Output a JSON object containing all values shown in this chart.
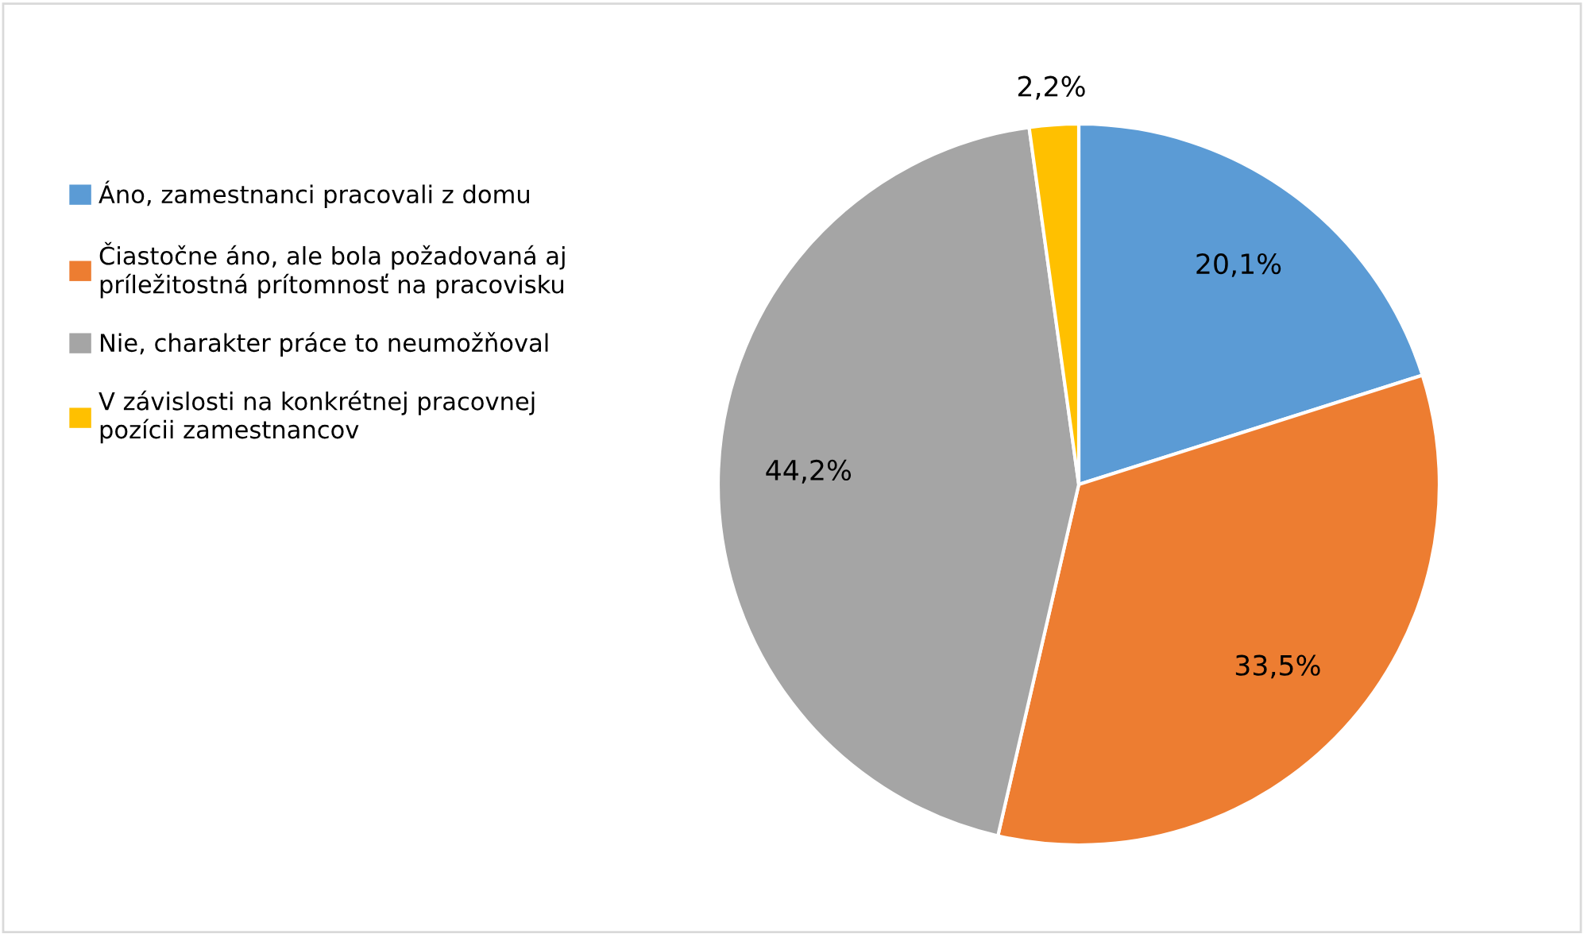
{
  "chart_data": {
    "type": "pie",
    "categories": [
      "Áno, zamestnanci pracovali z domu",
      "Čiastočne áno, ale bola požadovaná aj príležitostná prítomnosť na pracovisku",
      "Nie, charakter práce to neumožňoval",
      "V závislosti na konkrétnej pracovnej pozícii zamestnancov"
    ],
    "values": [
      20.1,
      33.5,
      44.2,
      2.2
    ],
    "value_labels": [
      "20,1%",
      "33,5%",
      "44,2%",
      "2,2%"
    ],
    "colors": [
      "#5b9bd5",
      "#ed7d31",
      "#a5a5a5",
      "#ffc000"
    ],
    "legend": "left"
  }
}
